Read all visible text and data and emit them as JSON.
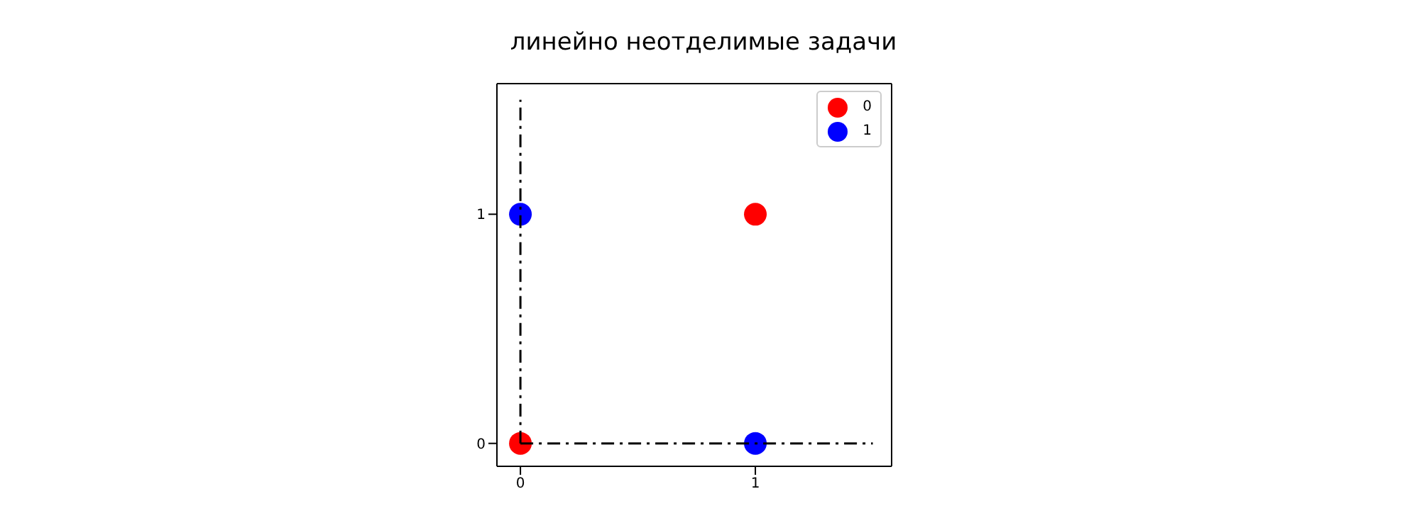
{
  "chart_data": {
    "type": "scatter",
    "title": "линейно неотделимые задачи",
    "series": [
      {
        "name": "0",
        "color": "#ff0000",
        "x": [
          0,
          1
        ],
        "values": [
          0,
          1
        ]
      },
      {
        "name": "1",
        "color": "#0000ff",
        "x": [
          0,
          1
        ],
        "values": [
          1,
          0
        ]
      },
      {
        "type": "line",
        "color": "#000000",
        "x": [
          0,
          0
        ],
        "values": [
          0,
          1.5
        ],
        "line_style": "dashed",
        "marker": "none"
      },
      {
        "type": "line",
        "color": "#000000",
        "x": [
          0,
          1.5
        ],
        "values": [
          0,
          0
        ],
        "line_style": "dashed",
        "marker": "none"
      }
    ],
    "xlim": [
      -0.1,
      1.58
    ],
    "ylim": [
      -0.1,
      1.57
    ],
    "xticks": [
      0,
      1
    ],
    "yticks": [
      0,
      1
    ],
    "marker": "circle",
    "grid": false,
    "legend": "top right"
  }
}
